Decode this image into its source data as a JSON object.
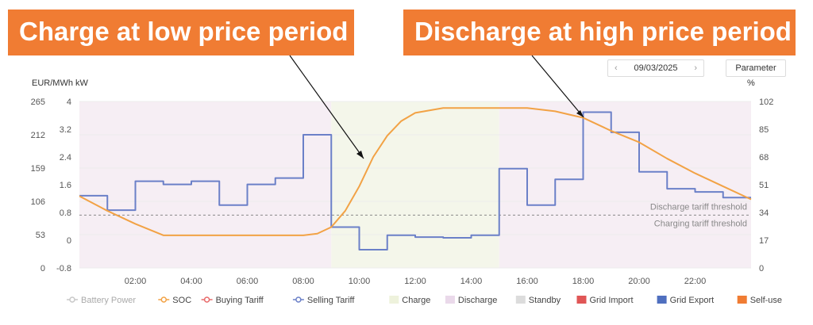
{
  "callouts": {
    "left": "Charge at low price period",
    "right": "Discharge at high price period"
  },
  "toolbar": {
    "date": "09/03/2025",
    "prev_icon": "chevron-left-icon",
    "next_icon": "chevron-right-icon",
    "parameter_label": "Parameter"
  },
  "chart_data": {
    "type": "line",
    "title": "",
    "left_axis_label": "EUR/MWh kW",
    "right_axis_label": "%",
    "x_ticks": [
      "02:00",
      "04:00",
      "06:00",
      "08:00",
      "10:00",
      "12:00",
      "14:00",
      "16:00",
      "18:00",
      "20:00",
      "22:00"
    ],
    "x_range_hours": [
      0,
      24
    ],
    "y_left_ticks": [
      "0",
      "53",
      "106",
      "159",
      "212",
      "265"
    ],
    "y_left_range": [
      0,
      265
    ],
    "y_power_ticks": [
      "-0.8",
      "0",
      "0.8",
      "1.6",
      "2.4",
      "3.2",
      "4"
    ],
    "y_power_range": [
      -0.8,
      4
    ],
    "y_right_ticks": [
      "0",
      "17",
      "34",
      "51",
      "68",
      "85",
      "102"
    ],
    "y_right_range": [
      0,
      102
    ],
    "bands": [
      {
        "type": "Discharge",
        "start": 0,
        "end": 9,
        "color": "#f6eef4"
      },
      {
        "type": "Charge",
        "start": 9,
        "end": 15,
        "color": "#f4f6ea"
      },
      {
        "type": "Discharge",
        "start": 15,
        "end": 24,
        "color": "#f6eef4"
      }
    ],
    "series": [
      {
        "name": "Selling Tariff",
        "axis": "left",
        "color": "#6b80c8",
        "step": true,
        "x": [
          0,
          1,
          2,
          3,
          4,
          5,
          6,
          7,
          8,
          9,
          10,
          11,
          12,
          13,
          14,
          15,
          16,
          17,
          18,
          19,
          20,
          21,
          22,
          23,
          24
        ],
        "values": [
          115,
          92,
          138,
          133,
          138,
          100,
          133,
          143,
          212,
          65,
          29,
          52,
          49,
          48,
          52,
          158,
          100,
          141,
          248,
          216,
          153,
          126,
          121,
          112,
          112
        ]
      },
      {
        "name": "SOC",
        "axis": "right",
        "color": "#f2a245",
        "step": false,
        "x": [
          0,
          1,
          2,
          3,
          4,
          5,
          6,
          7,
          8,
          8.5,
          9,
          9.5,
          10,
          10.5,
          11,
          11.5,
          12,
          13,
          14,
          15,
          16,
          17,
          17.5,
          18,
          19,
          20,
          21,
          22,
          23,
          24
        ],
        "values": [
          44,
          35,
          27,
          20,
          20,
          20,
          20,
          20,
          20,
          21,
          25,
          35,
          50,
          68,
          81,
          90,
          95,
          98,
          98,
          98,
          98,
          96,
          94,
          92,
          84,
          77,
          67,
          58,
          50,
          42
        ]
      }
    ],
    "thresholds": [
      {
        "label": "Discharge tariff threshold",
        "value": 84
      },
      {
        "label": "Charging tariff threshold",
        "value": 84
      }
    ],
    "legend": [
      {
        "label": "Battery Power",
        "color": "#c8c8c8",
        "marker": "line-dot"
      },
      {
        "label": "SOC",
        "color": "#f2a245",
        "marker": "line-dot"
      },
      {
        "label": "Buying Tariff",
        "color": "#e86a6a",
        "marker": "line-dot"
      },
      {
        "label": "Selling Tariff",
        "color": "#6b80c8",
        "marker": "line-dot"
      },
      {
        "label": "Charge",
        "color": "#eef2dc",
        "marker": "box"
      },
      {
        "label": "Discharge",
        "color": "#ead9ea",
        "marker": "box"
      },
      {
        "label": "Standby",
        "color": "#dcdcdc",
        "marker": "box"
      },
      {
        "label": "Grid Import",
        "color": "#e05656",
        "marker": "box"
      },
      {
        "label": "Grid Export",
        "color": "#4f6fbf",
        "marker": "box"
      },
      {
        "label": "Self-use",
        "color": "#f07c33",
        "marker": "box"
      }
    ],
    "legend_placement": "bottom",
    "grid": true
  }
}
